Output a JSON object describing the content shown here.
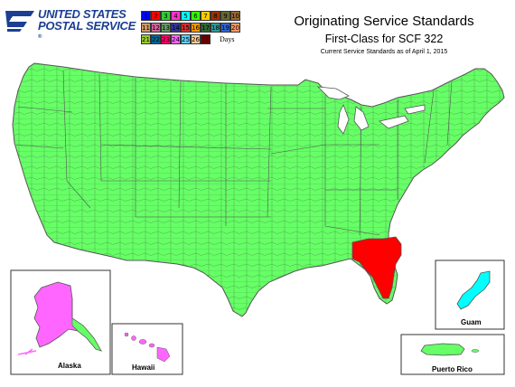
{
  "logo": {
    "line1": "UNITED STATES",
    "line2": "POSTAL SERVICE",
    "mark": "®",
    "icon": "eagle-icon"
  },
  "legend": {
    "row1": [
      {
        "label": "1",
        "color": "#0000ff"
      },
      {
        "label": "2",
        "color": "#ff0000"
      },
      {
        "label": "3",
        "color": "#33cc33"
      },
      {
        "label": "4",
        "color": "#ff33cc"
      },
      {
        "label": "5",
        "color": "#00ffff"
      },
      {
        "label": "6",
        "color": "#33ff00"
      },
      {
        "label": "7",
        "color": "#ffcc00"
      },
      {
        "label": "8",
        "color": "#993300"
      },
      {
        "label": "9",
        "color": "#666633"
      },
      {
        "label": "10",
        "color": "#996633"
      }
    ],
    "row2": [
      {
        "label": "11",
        "color": "#cc9966"
      },
      {
        "label": "12",
        "color": "#cc6699"
      },
      {
        "label": "13",
        "color": "#669966"
      },
      {
        "label": "14",
        "color": "#333399"
      },
      {
        "label": "15",
        "color": "#cc3333"
      },
      {
        "label": "16",
        "color": "#ff9900"
      },
      {
        "label": "17",
        "color": "#336633"
      },
      {
        "label": "18",
        "color": "#339999"
      },
      {
        "label": "19",
        "color": "#3366cc"
      },
      {
        "label": "20",
        "color": "#ff9966"
      }
    ],
    "row3": [
      {
        "label": "21",
        "color": "#99cc33"
      },
      {
        "label": "22",
        "color": "#006699"
      },
      {
        "label": "23",
        "color": "#ff0066"
      },
      {
        "label": "24",
        "color": "#ff66ff"
      },
      {
        "label": "25",
        "color": "#66ccff"
      },
      {
        "label": "26",
        "color": "#ffcc99"
      },
      {
        "label": "",
        "color": "#660000"
      }
    ],
    "days_label": "Days"
  },
  "title": {
    "main": "Originating Service Standards",
    "sub": "First-Class for SCF 322",
    "note": "Current Service Standards as of April 1, 2015"
  },
  "regions": {
    "mainland_color": "#66ff66",
    "origin_color": "#ff0000",
    "alaska_color": "#ff66ff",
    "guam_color": "#00ffff",
    "border_color": "#555555"
  },
  "insets": {
    "alaska": "Alaska",
    "hawaii": "Hawaii",
    "guam": "Guam",
    "puerto_rico": "Puerto Rico"
  }
}
